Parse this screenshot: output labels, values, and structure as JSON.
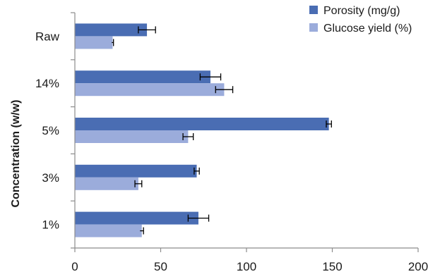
{
  "chart_data": {
    "type": "bar",
    "orientation": "horizontal",
    "categories": [
      "Raw",
      "14%",
      "5%",
      "3%",
      "1%"
    ],
    "series": [
      {
        "name": "Porosity (mg/g)",
        "color": "#4a6db3",
        "values": [
          42,
          79,
          148,
          71,
          72
        ],
        "errors": [
          5,
          6,
          1.5,
          1.5,
          6
        ]
      },
      {
        "name": "Glucose yield (%)",
        "color": "#9bacdb",
        "values": [
          22,
          87,
          66,
          37,
          39
        ],
        "errors": [
          0.5,
          5,
          3,
          2,
          1
        ]
      }
    ],
    "xlabel": "",
    "ylabel": "Concentration (w/w)",
    "xlim": [
      0,
      200
    ],
    "xticks": [
      "0",
      "50",
      "100",
      "150",
      "200"
    ],
    "grid": false,
    "legend_position": "top-right"
  }
}
